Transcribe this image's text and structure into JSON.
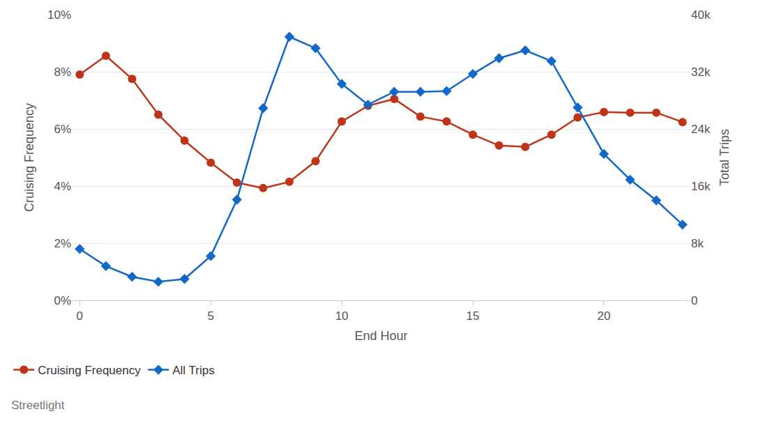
{
  "chart_data": {
    "type": "line",
    "x_label": "End Hour",
    "y_label": "Cruising Frequency",
    "y2_label": "Total Trips",
    "source": "Streetlight",
    "x": [
      0,
      1,
      2,
      3,
      4,
      5,
      6,
      7,
      8,
      9,
      10,
      11,
      12,
      13,
      14,
      15,
      16,
      17,
      18,
      19,
      20,
      21,
      22,
      23
    ],
    "series": [
      {
        "name": "Cruising Frequency",
        "color": "#bf3417",
        "marker": "circle",
        "axis": "y",
        "values": [
          7.9,
          8.56,
          7.75,
          6.5,
          5.59,
          4.82,
          4.12,
          3.93,
          4.15,
          4.87,
          6.26,
          6.81,
          7.05,
          6.43,
          6.26,
          5.8,
          5.42,
          5.37,
          5.8,
          6.4,
          6.59,
          6.57,
          6.57,
          6.24
        ]
      },
      {
        "name": "All Trips",
        "color": "#1168c9",
        "marker": "diamond",
        "axis": "y2",
        "values": [
          7200,
          4800,
          3300,
          2600,
          3000,
          6200,
          14100,
          26900,
          36900,
          35300,
          30300,
          27400,
          29200,
          29200,
          29300,
          31700,
          33900,
          35000,
          33500,
          27000,
          20500,
          16900,
          14000,
          10600
        ]
      }
    ],
    "xlim": [
      -0.3,
      23.3
    ],
    "xticks": [
      0,
      5,
      10,
      15,
      20
    ],
    "ylim": [
      0,
      10
    ],
    "yticks": [
      {
        "value": 0,
        "label": "0%"
      },
      {
        "value": 2,
        "label": "2%"
      },
      {
        "value": 4,
        "label": "4%"
      },
      {
        "value": 6,
        "label": "6%"
      },
      {
        "value": 8,
        "label": "8%"
      },
      {
        "value": 10,
        "label": "10%"
      }
    ],
    "y2lim": [
      0,
      40000
    ],
    "y2ticks": [
      0,
      {
        "value": 8000,
        "label": "8k"
      },
      {
        "value": 16000,
        "label": "16k"
      },
      {
        "value": 24000,
        "label": "24k"
      },
      {
        "value": 32000,
        "label": "32k"
      },
      {
        "value": 40000,
        "label": "40k"
      }
    ],
    "grid": true,
    "legend": "bottom left"
  }
}
